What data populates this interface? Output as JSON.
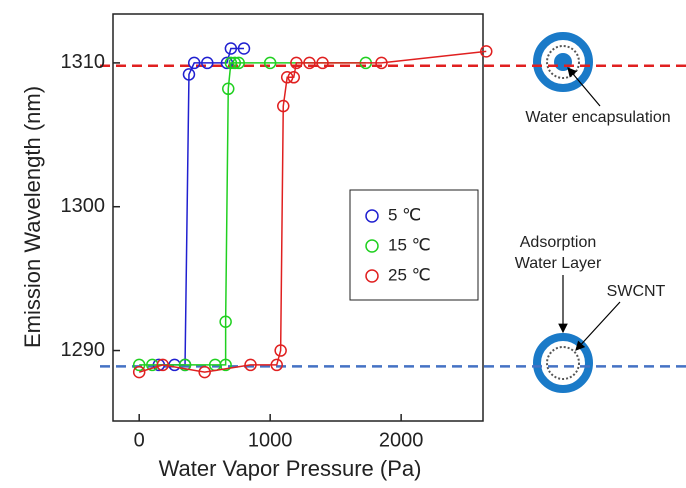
{
  "chart_data": {
    "type": "line",
    "x_label": "Water Vapor Pressure (Pa)",
    "y_label": "Emission Wavelength (nm)",
    "xlim": [
      -200,
      2625
    ],
    "ylim": [
      1285.1,
      1313.4
    ],
    "xticks": [
      0,
      1000,
      2000
    ],
    "yticks": [
      1290,
      1300,
      1310
    ],
    "series": [
      {
        "name": "5 ℃",
        "color": "#2020d0",
        "x": [
          150,
          270,
          350,
          380,
          420,
          520,
          670,
          700,
          800
        ],
        "values": [
          1289,
          1289,
          1289,
          1309.2,
          1310,
          1310,
          1310,
          1311,
          1311
        ]
      },
      {
        "name": "15 ℃",
        "color": "#20d020",
        "x": [
          0,
          100,
          350,
          580,
          660,
          660,
          680,
          700,
          730,
          760,
          1000,
          1730
        ],
        "values": [
          1289,
          1289,
          1289,
          1289,
          1289,
          1292,
          1308.2,
          1310,
          1310,
          1310,
          1310,
          1310
        ]
      },
      {
        "name": "25 ℃",
        "color": "#e02020",
        "x": [
          0,
          180,
          500,
          850,
          1050,
          1080,
          1100,
          1130,
          1180,
          1200,
          1300,
          1400,
          1850,
          2650
        ],
        "values": [
          1288.5,
          1289,
          1288.5,
          1289,
          1289,
          1290,
          1307,
          1309,
          1309,
          1310,
          1310,
          1310,
          1310,
          1310.8
        ]
      }
    ],
    "reference_lines": [
      {
        "value": 1309.8,
        "color": "#e02020"
      },
      {
        "value": 1288.9,
        "color": "#4472c4"
      }
    ],
    "annotations": [
      "Water encapsulation",
      "Adsorption",
      "Water Layer",
      "SWCNT"
    ]
  }
}
